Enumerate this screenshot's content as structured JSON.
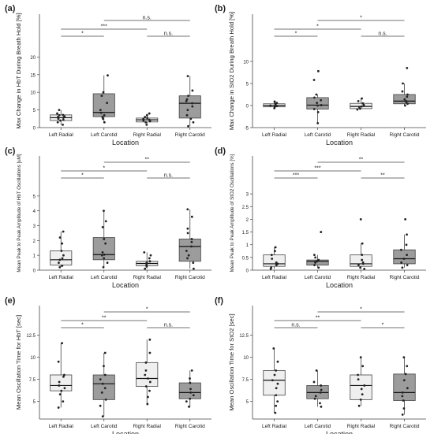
{
  "figure": {
    "colors": {
      "light_box": "#efefef",
      "dark_box": "#9c9c9c",
      "stroke": "#444444",
      "point": "#222222",
      "text": "#222222"
    }
  },
  "chart_data": [
    {
      "id": "a",
      "panel_label": "(a)",
      "type": "box",
      "xlabel": "Location",
      "ylabel": "Max Change in HbT During Breath Hold [%]",
      "categories": [
        "Left Radial",
        "Left Carotid",
        "Right Radial",
        "Right Carotid"
      ],
      "box_colors": [
        "light",
        "dark",
        "light",
        "dark"
      ],
      "ylim": [
        0,
        25
      ],
      "yticks": [
        0,
        5,
        10,
        15,
        20
      ],
      "boxes": [
        {
          "q1": 2.0,
          "median": 2.8,
          "q3": 3.6,
          "whisker_low": 0.8,
          "whisker_high": 5.0
        },
        {
          "q1": 3.1,
          "median": 4.3,
          "q3": 9.6,
          "whisker_low": 1.5,
          "whisker_high": 14.8
        },
        {
          "q1": 1.6,
          "median": 2.2,
          "q3": 2.7,
          "whisker_low": 0.8,
          "whisker_high": 4.0
        },
        {
          "q1": 2.7,
          "median": 6.9,
          "q3": 9.0,
          "whisker_low": 0.4,
          "whisker_high": 14.6
        }
      ],
      "points": [
        [
          0.8,
          1.5,
          2.0,
          2.2,
          2.5,
          2.8,
          3.0,
          3.2,
          3.5,
          3.6,
          4.0,
          5.0
        ],
        [
          1.5,
          2.5,
          3.0,
          3.5,
          4.2,
          5.0,
          7.0,
          9.0,
          10.0,
          14.8
        ],
        [
          0.8,
          1.5,
          1.8,
          2.0,
          2.2,
          2.5,
          2.7,
          3.0,
          3.5,
          4.0
        ],
        [
          0.4,
          1.5,
          2.5,
          3.5,
          5.0,
          6.0,
          6.9,
          7.5,
          8.0,
          9.0,
          10.5,
          14.6
        ]
      ],
      "significance": [
        {
          "from": 0,
          "to": 1,
          "label": "*",
          "level": 0
        },
        {
          "from": 2,
          "to": 3,
          "label": "n.s.",
          "level": 0
        },
        {
          "from": 0,
          "to": 2,
          "label": "***",
          "level": 1
        },
        {
          "from": 1,
          "to": 3,
          "label": "n.s.",
          "level": 2
        }
      ]
    },
    {
      "id": "b",
      "panel_label": "(b)",
      "type": "box",
      "xlabel": "Location",
      "ylabel": "Max Change in StO2 During Breath Hold [%]",
      "categories": [
        "Left Radial",
        "Left Carotid",
        "Right Radial",
        "Right Carotid"
      ],
      "box_colors": [
        "light",
        "dark",
        "light",
        "dark"
      ],
      "ylim": [
        -5,
        15
      ],
      "yticks": [
        -5,
        0,
        5,
        10
      ],
      "boxes": [
        {
          "q1": -0.3,
          "median": 0.0,
          "q3": 0.4,
          "whisker_low": -0.6,
          "whisker_high": 0.9
        },
        {
          "q1": -0.8,
          "median": 0.1,
          "q3": 1.8,
          "whisker_low": -4.0,
          "whisker_high": 2.5
        },
        {
          "q1": -0.7,
          "median": -0.2,
          "q3": 0.5,
          "whisker_low": -0.9,
          "whisker_high": 1.6
        },
        {
          "q1": 0.4,
          "median": 1.0,
          "q3": 2.5,
          "whisker_low": 0.0,
          "whisker_high": 5.0
        }
      ],
      "points": [
        [
          -0.6,
          -0.3,
          -0.1,
          0.0,
          0.2,
          0.4,
          0.6,
          0.9
        ],
        [
          -4.0,
          -1.5,
          -0.8,
          0.0,
          0.1,
          0.6,
          1.2,
          1.8,
          2.5,
          5.8,
          7.8
        ],
        [
          -0.9,
          -0.7,
          -0.4,
          -0.2,
          0.1,
          0.5,
          1.0,
          1.6
        ],
        [
          0.0,
          0.4,
          0.8,
          1.0,
          1.4,
          2.0,
          2.5,
          3.2,
          5.0,
          8.5
        ]
      ],
      "significance": [
        {
          "from": 0,
          "to": 1,
          "label": "*",
          "level": 0
        },
        {
          "from": 2,
          "to": 3,
          "label": "n.s.",
          "level": 0
        },
        {
          "from": 0,
          "to": 2,
          "label": "*",
          "level": 1
        },
        {
          "from": 1,
          "to": 3,
          "label": "*",
          "level": 2
        }
      ]
    },
    {
      "id": "c",
      "panel_label": "(c)",
      "type": "box",
      "xlabel": "Location",
      "ylabel": "Mean Peak to Peak Amplitude of HbT Oscillations [uM]",
      "categories": [
        "Left Radial",
        "Left Carotid",
        "Right Radial",
        "Right Carotid"
      ],
      "box_colors": [
        "light",
        "dark",
        "light",
        "dark"
      ],
      "ylim": [
        0,
        6
      ],
      "yticks": [
        0,
        1,
        2,
        3,
        4,
        5
      ],
      "boxes": [
        {
          "q1": 0.35,
          "median": 0.7,
          "q3": 1.3,
          "whisker_low": 0.2,
          "whisker_high": 2.6
        },
        {
          "q1": 0.7,
          "median": 1.05,
          "q3": 2.2,
          "whisker_low": 0.2,
          "whisker_high": 4.0
        },
        {
          "q1": 0.3,
          "median": 0.45,
          "q3": 0.6,
          "whisker_low": 0.1,
          "whisker_high": 1.2
        },
        {
          "q1": 0.6,
          "median": 1.6,
          "q3": 2.1,
          "whisker_low": 0.1,
          "whisker_high": 4.1
        }
      ],
      "points": [
        [
          0.2,
          0.3,
          0.5,
          0.7,
          0.8,
          1.0,
          1.3,
          1.8,
          2.2,
          2.6
        ],
        [
          0.2,
          0.5,
          0.8,
          1.0,
          1.05,
          1.2,
          1.8,
          2.1,
          2.9,
          3.3,
          4.0
        ],
        [
          0.1,
          0.25,
          0.35,
          0.45,
          0.5,
          0.6,
          0.8,
          1.0,
          1.2
        ],
        [
          0.1,
          0.5,
          0.8,
          1.0,
          1.3,
          1.6,
          1.9,
          2.1,
          2.5,
          2.8,
          3.6,
          4.1
        ]
      ],
      "significance": [
        {
          "from": 0,
          "to": 1,
          "label": "*",
          "level": 0
        },
        {
          "from": 2,
          "to": 3,
          "label": "n.s.",
          "level": 0
        },
        {
          "from": 0,
          "to": 2,
          "label": "*",
          "level": 1
        },
        {
          "from": 1,
          "to": 3,
          "label": "**",
          "level": 2
        }
      ]
    },
    {
      "id": "d",
      "panel_label": "(d)",
      "type": "box",
      "xlabel": "Location",
      "ylabel": "Mean Peak to Peak Amplitude of StO2 Oscillations [%]",
      "categories": [
        "Left Radial",
        "Left Carotid",
        "Right Radial",
        "Right Carotid"
      ],
      "box_colors": [
        "light",
        "dark",
        "light",
        "dark"
      ],
      "ylim": [
        0,
        3.5
      ],
      "yticks": [
        0.0,
        0.5,
        1.0,
        1.5,
        2.0,
        2.5,
        3.0
      ],
      "boxes": [
        {
          "q1": 0.15,
          "median": 0.25,
          "q3": 0.6,
          "whisker_low": 0.05,
          "whisker_high": 0.9
        },
        {
          "q1": 0.2,
          "median": 0.35,
          "q3": 0.4,
          "whisker_low": 0.1,
          "whisker_high": 0.6
        },
        {
          "q1": 0.15,
          "median": 0.25,
          "q3": 0.6,
          "whisker_low": 0.05,
          "whisker_high": 1.05
        },
        {
          "q1": 0.25,
          "median": 0.45,
          "q3": 0.8,
          "whisker_low": 0.1,
          "whisker_high": 1.4
        }
      ],
      "points": [
        [
          0.05,
          0.1,
          0.2,
          0.25,
          0.3,
          0.45,
          0.6,
          0.75,
          0.9
        ],
        [
          0.1,
          0.2,
          0.3,
          0.35,
          0.4,
          0.5,
          0.6,
          1.5
        ],
        [
          0.05,
          0.1,
          0.2,
          0.25,
          0.3,
          0.4,
          0.6,
          1.05,
          2.0
        ],
        [
          0.1,
          0.2,
          0.3,
          0.45,
          0.6,
          0.8,
          1.0,
          1.4,
          2.0
        ]
      ],
      "significance": [
        {
          "from": 0,
          "to": 1,
          "label": "***",
          "level": 0
        },
        {
          "from": 2,
          "to": 3,
          "label": "**",
          "level": 0
        },
        {
          "from": 0,
          "to": 2,
          "label": "***",
          "level": 1
        },
        {
          "from": 1,
          "to": 3,
          "label": "**",
          "level": 2
        }
      ]
    },
    {
      "id": "e",
      "panel_label": "(e)",
      "type": "box",
      "xlabel": "Location",
      "ylabel": "Mean Oscillation Time for HbT [sec]",
      "categories": [
        "Left Radial",
        "Left Carotid",
        "Right Radial",
        "Right Carotid"
      ],
      "box_colors": [
        "light",
        "dark",
        "light",
        "dark"
      ],
      "ylim": [
        3,
        13
      ],
      "yticks": [
        5,
        7.5,
        10,
        12.5
      ],
      "boxes": [
        {
          "q1": 6.2,
          "median": 6.8,
          "q3": 8.0,
          "whisker_low": 4.3,
          "whisker_high": 11.6
        },
        {
          "q1": 5.2,
          "median": 7.0,
          "q3": 8.0,
          "whisker_low": 3.3,
          "whisker_high": 10.5
        },
        {
          "q1": 6.7,
          "median": 7.6,
          "q3": 9.4,
          "whisker_low": 4.7,
          "whisker_high": 12.0
        },
        {
          "q1": 5.3,
          "median": 6.0,
          "q3": 7.1,
          "whisker_low": 4.4,
          "whisker_high": 8.5
        }
      ],
      "points": [
        [
          4.3,
          5.0,
          5.8,
          6.2,
          6.5,
          6.8,
          7.2,
          7.8,
          8.0,
          9.5,
          11.6
        ],
        [
          3.3,
          4.5,
          5.2,
          6.0,
          6.5,
          7.0,
          7.5,
          8.0,
          9.0,
          10.5
        ],
        [
          4.7,
          5.5,
          6.2,
          6.7,
          7.2,
          7.6,
          8.0,
          8.5,
          9.4,
          10.5,
          12.0
        ],
        [
          4.4,
          5.0,
          5.3,
          5.7,
          6.0,
          6.4,
          7.1,
          7.6,
          8.5
        ]
      ],
      "significance": [
        {
          "from": 0,
          "to": 1,
          "label": "*",
          "level": 0
        },
        {
          "from": 2,
          "to": 3,
          "label": "n.s.",
          "level": 0
        },
        {
          "from": 0,
          "to": 2,
          "label": "**",
          "level": 1
        },
        {
          "from": 1,
          "to": 3,
          "label": "*",
          "level": 2
        }
      ]
    },
    {
      "id": "f",
      "panel_label": "(f)",
      "type": "box",
      "xlabel": "Location",
      "ylabel": "Mean Oscillation Time for StO2 [sec]",
      "categories": [
        "Left Radial",
        "Left Carotid",
        "Right Radial",
        "Right Carotid"
      ],
      "box_colors": [
        "light",
        "dark",
        "light",
        "dark"
      ],
      "ylim": [
        3,
        13
      ],
      "yticks": [
        5,
        7.5,
        10,
        12.5
      ],
      "boxes": [
        {
          "q1": 5.7,
          "median": 7.4,
          "q3": 8.5,
          "whisker_low": 3.7,
          "whisker_high": 11.0
        },
        {
          "q1": 5.3,
          "median": 6.0,
          "q3": 6.8,
          "whisker_low": 4.4,
          "whisker_high": 8.5
        },
        {
          "q1": 5.2,
          "median": 6.8,
          "q3": 8.0,
          "whisker_low": 4.5,
          "whisker_high": 10.0
        },
        {
          "q1": 5.1,
          "median": 6.0,
          "q3": 8.1,
          "whisker_low": 3.5,
          "whisker_high": 10.0
        }
      ],
      "points": [
        [
          3.7,
          4.5,
          5.0,
          5.7,
          6.5,
          7.0,
          7.4,
          8.0,
          8.5,
          9.5,
          11.0
        ],
        [
          4.4,
          4.8,
          5.3,
          5.6,
          6.0,
          6.3,
          6.8,
          7.2,
          8.5
        ],
        [
          4.5,
          5.2,
          5.8,
          6.4,
          6.8,
          7.5,
          8.0,
          9.0,
          10.0
        ],
        [
          3.5,
          4.2,
          5.1,
          5.6,
          6.0,
          6.5,
          7.4,
          8.1,
          9.0,
          10.0
        ]
      ],
      "significance": [
        {
          "from": 0,
          "to": 1,
          "label": "n.s.",
          "level": 0
        },
        {
          "from": 2,
          "to": 3,
          "label": "*",
          "level": 0
        },
        {
          "from": 0,
          "to": 2,
          "label": "**",
          "level": 1
        },
        {
          "from": 1,
          "to": 3,
          "label": "*",
          "level": 2
        }
      ]
    }
  ]
}
